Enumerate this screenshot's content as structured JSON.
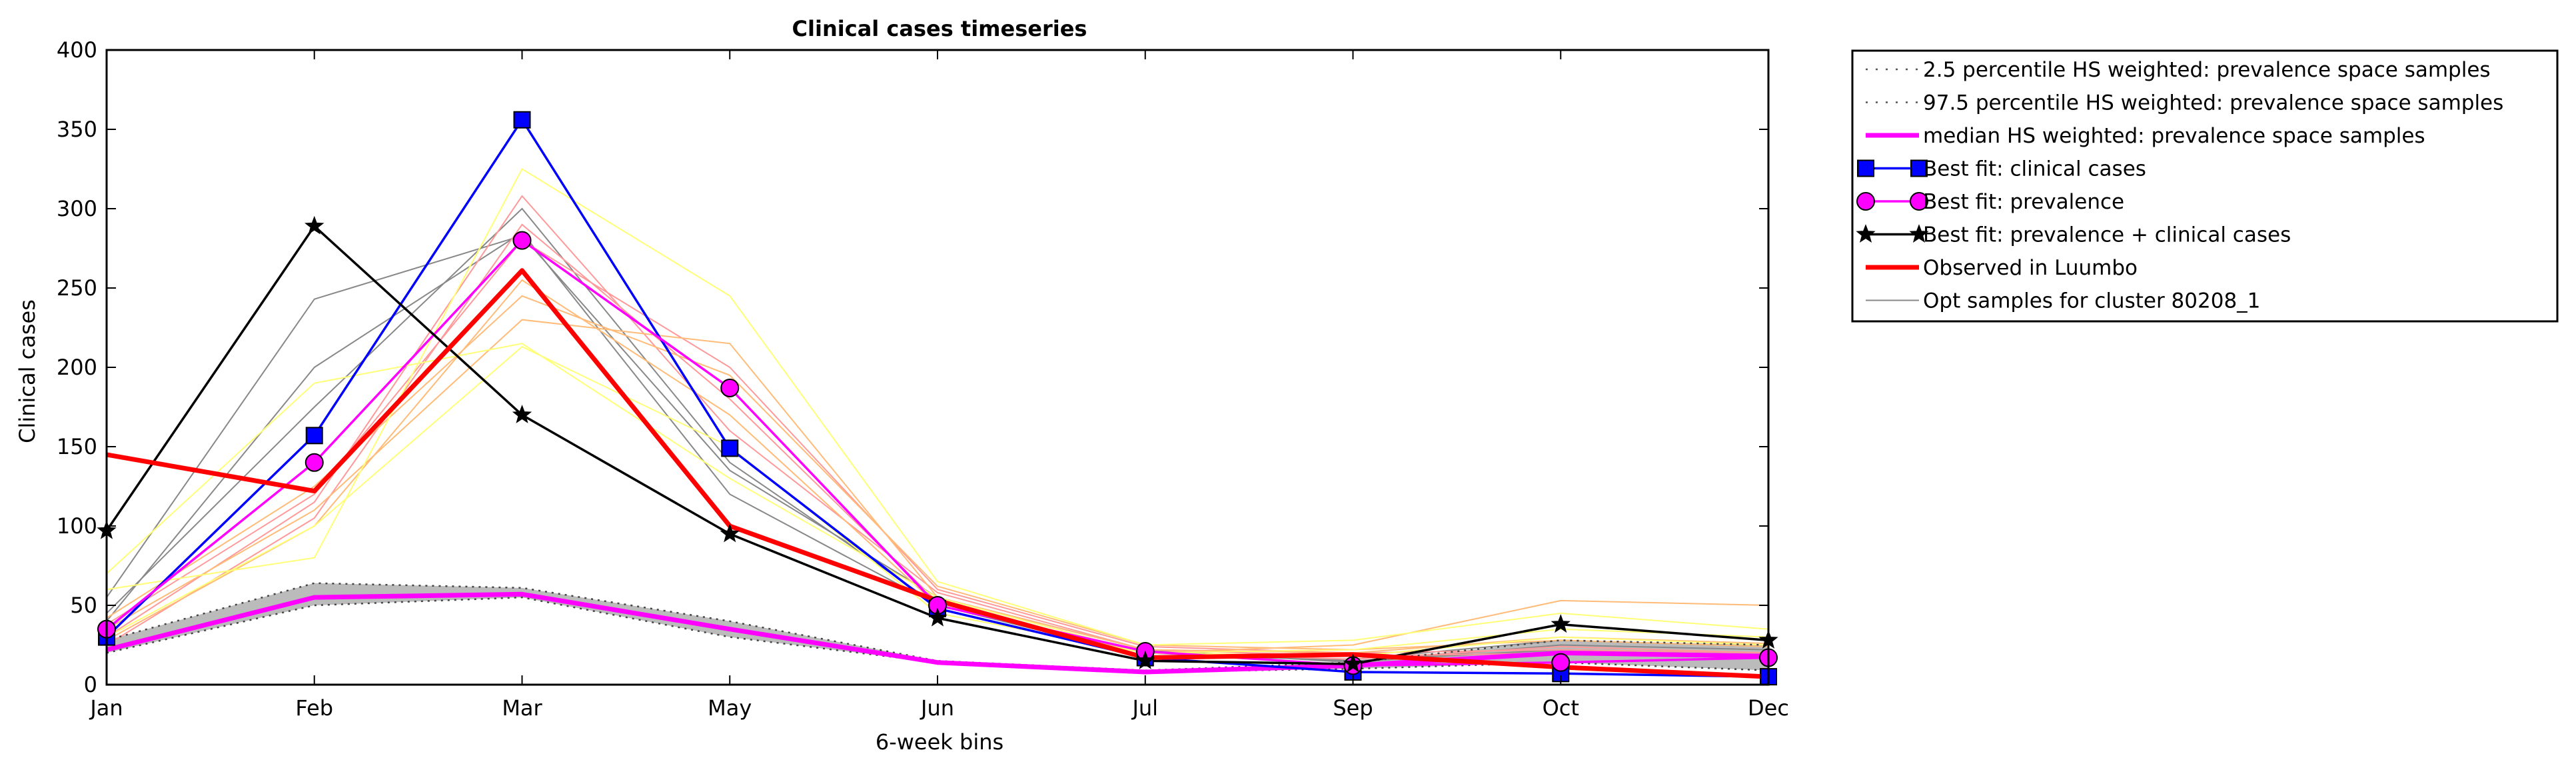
{
  "chart_data": {
    "type": "line",
    "title": "Clinical cases timeseries",
    "xlabel": "6-week bins",
    "ylabel": "Clinical cases",
    "categories": [
      "Jan",
      "Feb",
      "Mar",
      "May",
      "Jun",
      "Jul",
      "Sep",
      "Oct",
      "Dec"
    ],
    "ylim": [
      0,
      400
    ],
    "yticks": [
      0,
      50,
      100,
      150,
      200,
      250,
      300,
      350,
      400
    ],
    "grid": false,
    "legend_position": "outside-right",
    "legend": [
      {
        "label": "2.5 percentile HS weighted: prevalence space samples",
        "style": "dotted",
        "color": "#555555"
      },
      {
        "label": "97.5 percentile HS weighted: prevalence space samples",
        "style": "dotted",
        "color": "#555555"
      },
      {
        "label": "median HS weighted: prevalence space samples",
        "style": "solid",
        "color": "#ff00ff"
      },
      {
        "label": "Best fit: clinical cases",
        "style": "solid",
        "color": "#0000ff",
        "marker": "square"
      },
      {
        "label": "Best fit: prevalence",
        "style": "solid",
        "color": "#ff00ff",
        "marker": "circle"
      },
      {
        "label": "Best fit: prevalence + clinical cases",
        "style": "solid",
        "color": "#000000",
        "marker": "star"
      },
      {
        "label": "Observed in Luumbo",
        "style": "solid",
        "color": "#ff0000"
      },
      {
        "label": "Opt samples for cluster 80208_1",
        "style": "solid",
        "color": "#888888"
      }
    ],
    "band": {
      "fill_color": "#bbbbbb",
      "lower": [
        20,
        50,
        55,
        30,
        14,
        8,
        10,
        14,
        9
      ],
      "upper": [
        28,
        64,
        61,
        40,
        15,
        9,
        14,
        28,
        25
      ]
    },
    "series": [
      {
        "key": "p025",
        "color": "#444444",
        "style": "dotted",
        "values": [
          20,
          50,
          55,
          30,
          14,
          8,
          10,
          14,
          9
        ]
      },
      {
        "key": "p975",
        "color": "#444444",
        "style": "dotted",
        "values": [
          28,
          64,
          61,
          40,
          15,
          9,
          14,
          28,
          25
        ]
      },
      {
        "key": "median",
        "color": "#ff00ff",
        "style": "solid",
        "values": [
          22,
          55,
          57,
          35,
          14,
          8,
          12,
          20,
          18
        ]
      },
      {
        "key": "best_clinical",
        "color": "#0000ff",
        "style": "solid",
        "marker": "square",
        "values": [
          30,
          157,
          356,
          149,
          48,
          17,
          8,
          7,
          5
        ]
      },
      {
        "key": "best_prevalence",
        "color": "#ff00ff",
        "style": "solid",
        "marker": "circle",
        "values": [
          35,
          140,
          280,
          187,
          50,
          21,
          12,
          14,
          17
        ]
      },
      {
        "key": "best_both",
        "color": "#000000",
        "style": "solid",
        "marker": "star",
        "values": [
          97,
          289,
          170,
          95,
          42,
          15,
          13,
          38,
          28
        ]
      },
      {
        "key": "observed",
        "color": "#ff0000",
        "style": "solid",
        "values": [
          145,
          122,
          261,
          100,
          53,
          17,
          19,
          11,
          5
        ]
      }
    ],
    "samples": [
      {
        "color": "#888888",
        "values": [
          40,
          200,
          285,
          120,
          50,
          20,
          15,
          22,
          20
        ]
      },
      {
        "color": "#888888",
        "values": [
          55,
          243,
          283,
          135,
          55,
          22,
          14,
          25,
          22
        ]
      },
      {
        "color": "#888888",
        "values": [
          45,
          175,
          300,
          140,
          50,
          18,
          16,
          28,
          24
        ]
      },
      {
        "color": "#ff9999",
        "values": [
          30,
          115,
          308,
          160,
          58,
          22,
          18,
          20,
          18
        ]
      },
      {
        "color": "#ff9999",
        "values": [
          25,
          105,
          290,
          180,
          52,
          20,
          16,
          24,
          20
        ]
      },
      {
        "color": "#ff9999",
        "values": [
          38,
          120,
          280,
          200,
          60,
          24,
          20,
          22,
          20
        ]
      },
      {
        "color": "#ffbb77",
        "values": [
          35,
          110,
          230,
          215,
          55,
          22,
          20,
          30,
          26
        ]
      },
      {
        "color": "#ffbb77",
        "values": [
          42,
          125,
          245,
          195,
          62,
          25,
          22,
          28,
          24
        ]
      },
      {
        "color": "#ffbb77",
        "values": [
          28,
          100,
          255,
          170,
          50,
          20,
          25,
          53,
          50
        ]
      },
      {
        "color": "#ffff77",
        "values": [
          60,
          80,
          325,
          245,
          65,
          25,
          28,
          45,
          35
        ]
      },
      {
        "color": "#ffff77",
        "values": [
          30,
          100,
          213,
          150,
          45,
          20,
          22,
          35,
          30
        ]
      },
      {
        "color": "#ffff77",
        "values": [
          70,
          190,
          215,
          130,
          55,
          20,
          18,
          30,
          25
        ]
      }
    ]
  }
}
